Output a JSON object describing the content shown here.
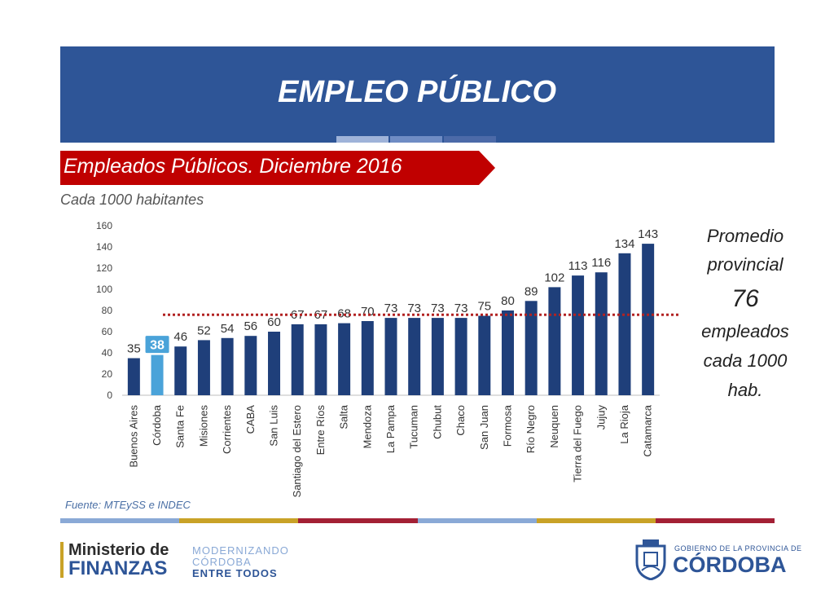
{
  "header": {
    "title": "EMPLEO PÚBLICO"
  },
  "subtitle": "Empleados Públicos. Diciembre 2016",
  "unit_note": "Cada 1000 habitantes",
  "average_box": {
    "title_line1": "Promedio",
    "title_line2": "provincial",
    "value": "76",
    "unit_line1": "empleados",
    "unit_line2": "cada 1000",
    "unit_line3": "hab."
  },
  "source": "Fuente: MTEySS e INDEC",
  "footer": {
    "ministerio_line1": "Ministerio de",
    "ministerio_line2": "FINANZAS",
    "mod_line1": "MODERNIZANDO",
    "mod_line2": "CÓRDOBA",
    "mod_line3": "ENTRE TODOS",
    "gobierno_small": "GOBIERNO DE LA PROVINCIA DE",
    "gobierno_big": "CÓRDOBA"
  },
  "colors": {
    "banner": "#2e5597",
    "subtitle_box": "#c00000",
    "bar": "#1f3f7a",
    "highlight_bar": "#4aa3d9",
    "average_line": "#b22222",
    "banner_accent_1": "#9fb3d9",
    "banner_accent_2": "#6f8cc4",
    "banner_accent_3": "#4c6aa8",
    "stripe": [
      "#8aa9d6",
      "#c9a227",
      "#a32035",
      "#8aa9d6",
      "#c9a227",
      "#a32035"
    ]
  },
  "chart_data": {
    "type": "bar",
    "categories": [
      "Buenos Aires",
      "Córdoba",
      "Santa Fe",
      "Misiones",
      "Corrientes",
      "CABA",
      "San Luis",
      "Santiago del Estero",
      "Entre Ríos",
      "Salta",
      "Mendoza",
      "La Pampa",
      "Tucuman",
      "Chubut",
      "Chaco",
      "San Juan",
      "Formosa",
      "Río Negro",
      "Neuquen",
      "Tierra del Fuego",
      "Jujuy",
      "La Rioja",
      "Catamarca"
    ],
    "values": [
      35,
      38,
      46,
      52,
      54,
      56,
      60,
      67,
      67,
      68,
      70,
      73,
      73,
      73,
      73,
      75,
      80,
      89,
      102,
      113,
      116,
      134,
      143
    ],
    "highlight_category": "Córdoba",
    "average": 76,
    "ylim": [
      0,
      160
    ],
    "yticks": [
      0,
      20,
      40,
      60,
      80,
      100,
      120,
      140,
      160
    ],
    "grid": false,
    "legend": "none"
  }
}
